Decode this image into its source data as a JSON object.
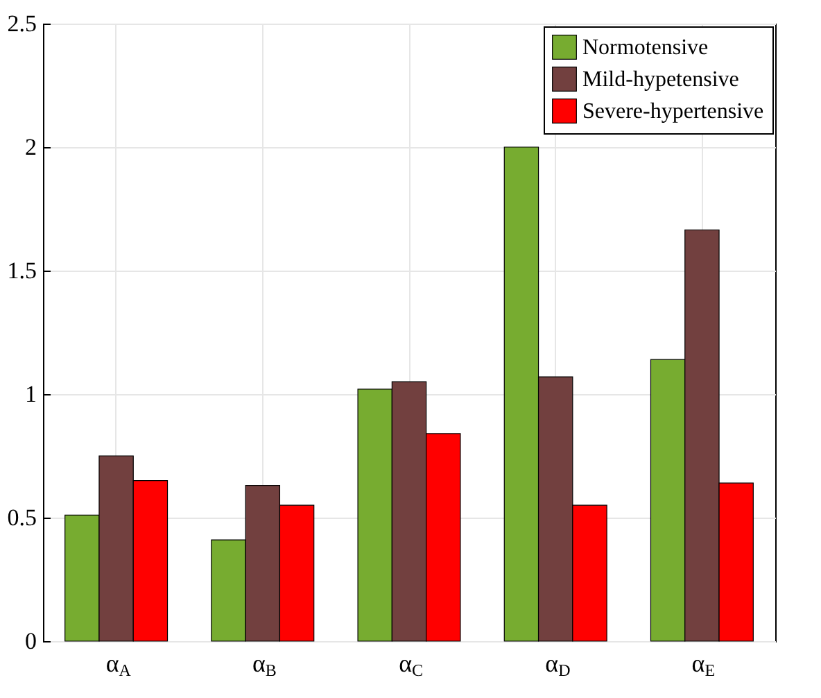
{
  "chart_data": {
    "type": "bar",
    "categories": [
      "α$_{A}$",
      "α$_{B}$",
      "α$_{C}$",
      "α$_{D}$",
      "α$_{E}$"
    ],
    "series": [
      {
        "name": "Normotensive",
        "color": "#77ac30",
        "values": [
          0.51,
          0.41,
          1.02,
          2.0,
          1.14
        ]
      },
      {
        "name": "Mild-hypetensive",
        "color": "#72403f",
        "values": [
          0.75,
          0.63,
          1.05,
          1.07,
          1.665
        ]
      },
      {
        "name": "Severe-hypertensive",
        "color": "#ff0000",
        "values": [
          0.65,
          0.55,
          0.84,
          0.55,
          0.64
        ]
      }
    ],
    "ylim": [
      0,
      2.5
    ],
    "yticks": [
      0,
      0.5,
      1,
      1.5,
      2,
      2.5
    ],
    "grid": true,
    "legend": "top right"
  }
}
